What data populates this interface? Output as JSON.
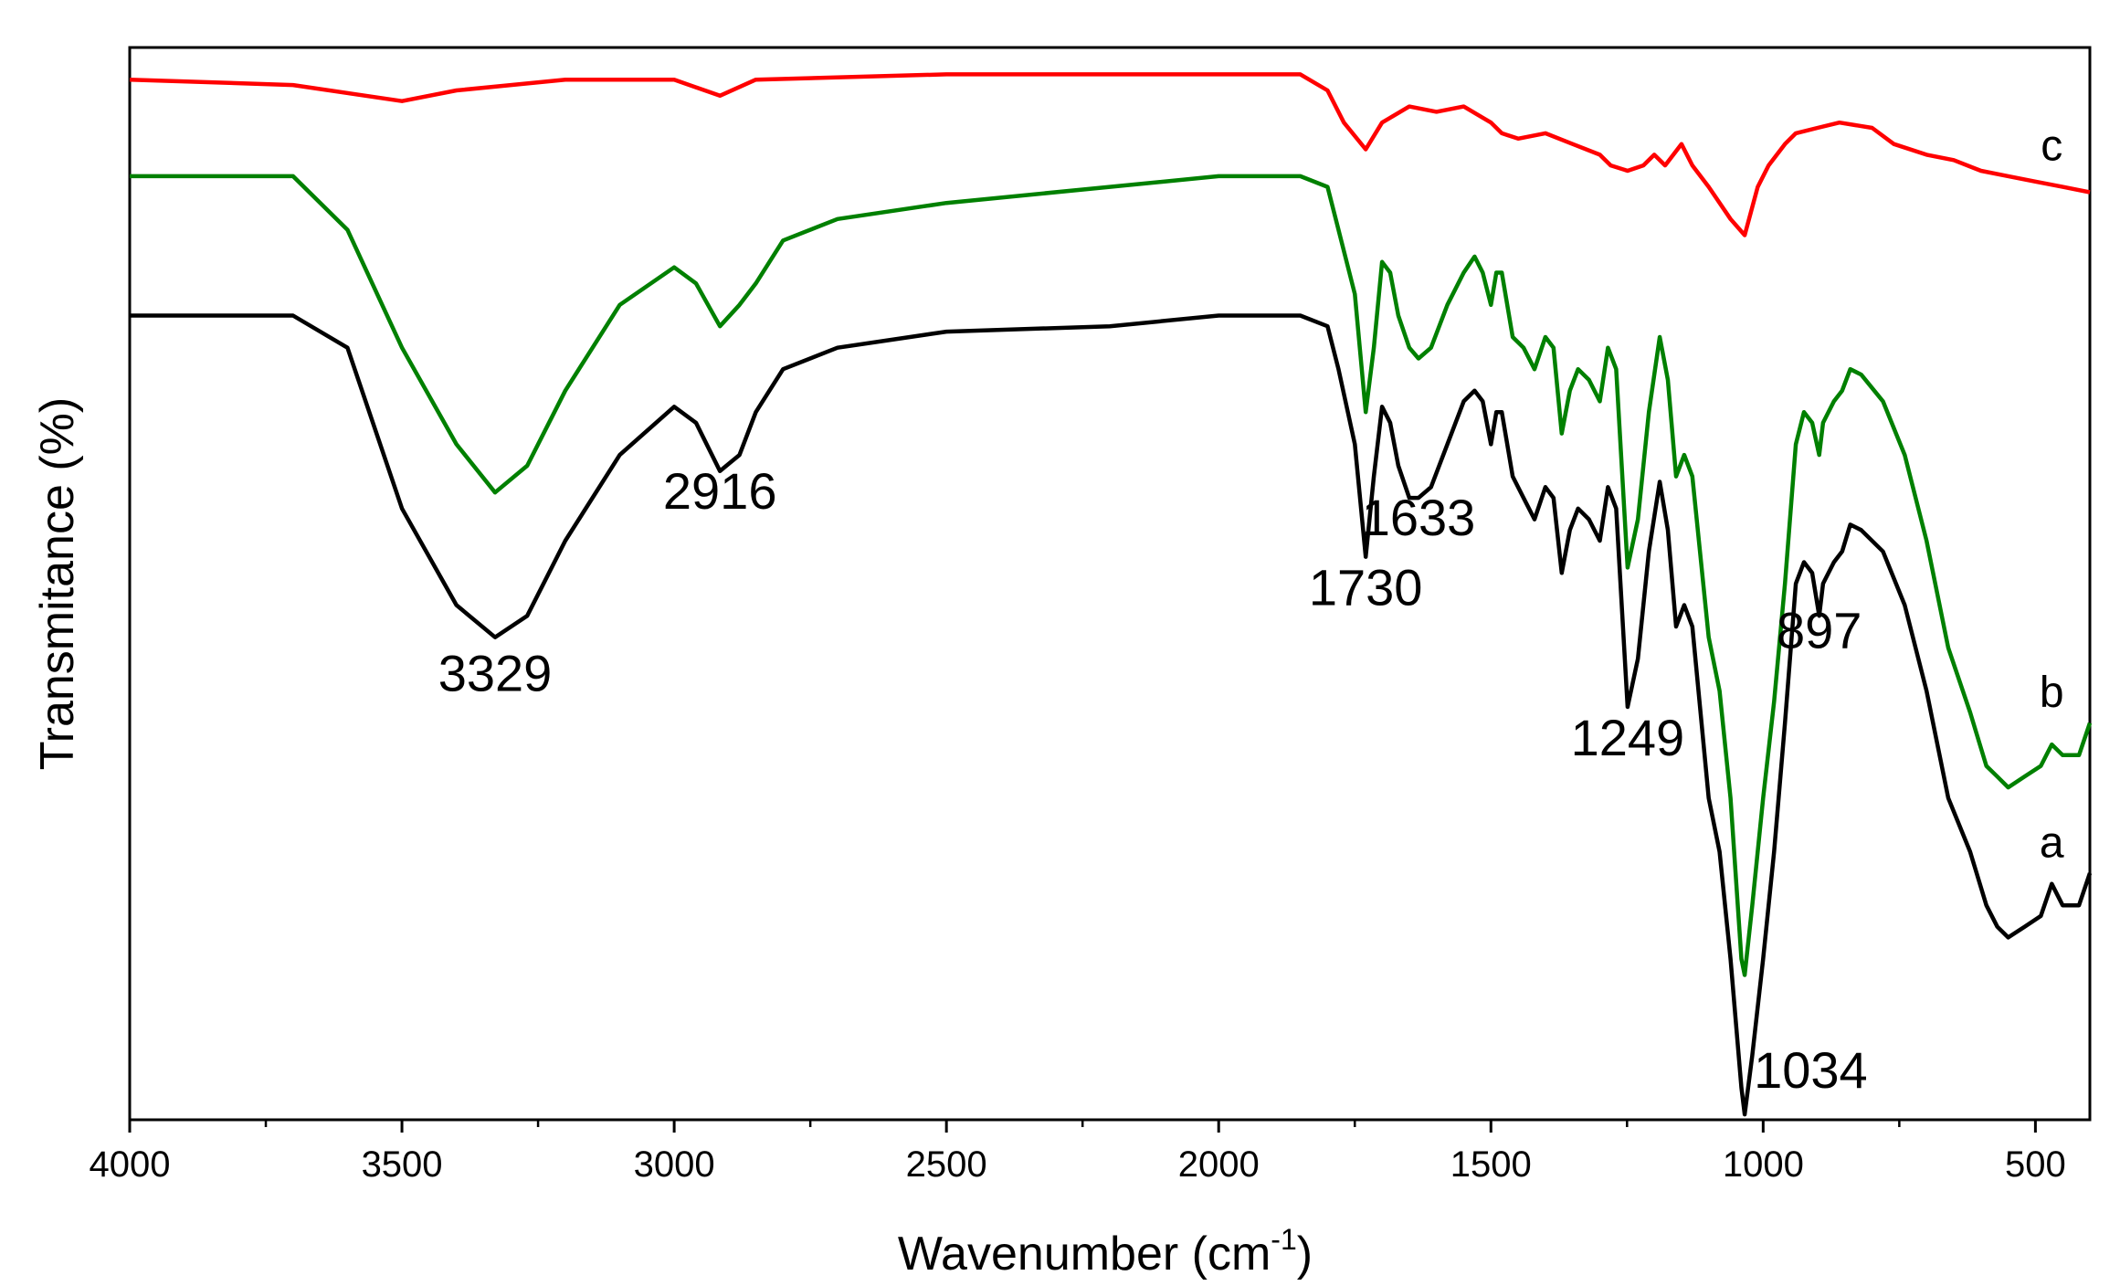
{
  "chart_data": {
    "type": "line",
    "xlabel": "Wavenumber (cm",
    "xlabel_sup": "-1",
    "xlabel_close": ")",
    "ylabel": "Transmitance (%)",
    "xlim": [
      4000,
      400
    ],
    "x_reversed": true,
    "xticks": [
      4000,
      3500,
      3000,
      2500,
      2000,
      1500,
      1000,
      500
    ],
    "xtick_labels": [
      "4000",
      "3500",
      "3000",
      "2500",
      "2000",
      "1500",
      "1000",
      "500"
    ],
    "y_tick_labels_shown": false,
    "ylim": [
      0,
      100
    ],
    "grid": false,
    "frame": "box",
    "series": [
      {
        "name": "a",
        "color": "#000000",
        "points": [
          [
            4000,
            75
          ],
          [
            3700,
            75
          ],
          [
            3600,
            72
          ],
          [
            3500,
            57
          ],
          [
            3400,
            48
          ],
          [
            3329,
            45
          ],
          [
            3270,
            47
          ],
          [
            3200,
            54
          ],
          [
            3100,
            62
          ],
          [
            3000,
            66.5
          ],
          [
            2960,
            65
          ],
          [
            2916,
            60.5
          ],
          [
            2880,
            62
          ],
          [
            2850,
            66
          ],
          [
            2800,
            70
          ],
          [
            2700,
            72
          ],
          [
            2500,
            73.5
          ],
          [
            2200,
            74
          ],
          [
            2000,
            75
          ],
          [
            1850,
            75
          ],
          [
            1800,
            74
          ],
          [
            1780,
            70
          ],
          [
            1750,
            63
          ],
          [
            1730,
            52.5
          ],
          [
            1715,
            60
          ],
          [
            1700,
            66.5
          ],
          [
            1685,
            65
          ],
          [
            1670,
            61
          ],
          [
            1650,
            58
          ],
          [
            1633,
            58
          ],
          [
            1610,
            59
          ],
          [
            1580,
            63
          ],
          [
            1550,
            67
          ],
          [
            1530,
            68
          ],
          [
            1515,
            67
          ],
          [
            1500,
            63
          ],
          [
            1490,
            66
          ],
          [
            1480,
            66
          ],
          [
            1460,
            60
          ],
          [
            1440,
            58
          ],
          [
            1420,
            56
          ],
          [
            1400,
            59
          ],
          [
            1385,
            58
          ],
          [
            1370,
            51
          ],
          [
            1355,
            55
          ],
          [
            1340,
            57
          ],
          [
            1320,
            56
          ],
          [
            1300,
            54
          ],
          [
            1285,
            59
          ],
          [
            1270,
            57
          ],
          [
            1249,
            38.5
          ],
          [
            1230,
            43
          ],
          [
            1210,
            53
          ],
          [
            1190,
            59.5
          ],
          [
            1175,
            55
          ],
          [
            1160,
            46
          ],
          [
            1145,
            48
          ],
          [
            1130,
            46
          ],
          [
            1100,
            30
          ],
          [
            1080,
            25
          ],
          [
            1060,
            15
          ],
          [
            1040,
            3
          ],
          [
            1034,
            0.5
          ],
          [
            1020,
            6
          ],
          [
            1000,
            15
          ],
          [
            980,
            25
          ],
          [
            960,
            37
          ],
          [
            940,
            50
          ],
          [
            925,
            52
          ],
          [
            910,
            51
          ],
          [
            897,
            47
          ],
          [
            890,
            50
          ],
          [
            870,
            52
          ],
          [
            855,
            53
          ],
          [
            840,
            55.5
          ],
          [
            820,
            55
          ],
          [
            780,
            53
          ],
          [
            740,
            48
          ],
          [
            700,
            40
          ],
          [
            660,
            30
          ],
          [
            620,
            25
          ],
          [
            590,
            20
          ],
          [
            570,
            18
          ],
          [
            550,
            17
          ],
          [
            520,
            18
          ],
          [
            490,
            19
          ],
          [
            470,
            22
          ],
          [
            450,
            20
          ],
          [
            420,
            20
          ],
          [
            400,
            23
          ]
        ]
      },
      {
        "name": "b",
        "color": "#008000",
        "points": [
          [
            4000,
            88
          ],
          [
            3700,
            88
          ],
          [
            3600,
            83
          ],
          [
            3500,
            72
          ],
          [
            3400,
            63
          ],
          [
            3329,
            58.5
          ],
          [
            3270,
            61
          ],
          [
            3200,
            68
          ],
          [
            3100,
            76
          ],
          [
            3000,
            79.5
          ],
          [
            2960,
            78
          ],
          [
            2916,
            74
          ],
          [
            2880,
            76
          ],
          [
            2850,
            78
          ],
          [
            2800,
            82
          ],
          [
            2700,
            84
          ],
          [
            2500,
            85.5
          ],
          [
            2200,
            87
          ],
          [
            2000,
            88
          ],
          [
            1850,
            88
          ],
          [
            1800,
            87
          ],
          [
            1780,
            83
          ],
          [
            1750,
            77
          ],
          [
            1730,
            66
          ],
          [
            1715,
            72
          ],
          [
            1700,
            80
          ],
          [
            1685,
            79
          ],
          [
            1670,
            75
          ],
          [
            1650,
            72
          ],
          [
            1633,
            71
          ],
          [
            1610,
            72
          ],
          [
            1580,
            76
          ],
          [
            1550,
            79
          ],
          [
            1530,
            80.5
          ],
          [
            1515,
            79
          ],
          [
            1500,
            76
          ],
          [
            1490,
            79
          ],
          [
            1480,
            79
          ],
          [
            1460,
            73
          ],
          [
            1440,
            72
          ],
          [
            1420,
            70
          ],
          [
            1400,
            73
          ],
          [
            1385,
            72
          ],
          [
            1370,
            64
          ],
          [
            1355,
            68
          ],
          [
            1340,
            70
          ],
          [
            1320,
            69
          ],
          [
            1300,
            67
          ],
          [
            1285,
            72
          ],
          [
            1270,
            70
          ],
          [
            1249,
            51.5
          ],
          [
            1230,
            56
          ],
          [
            1210,
            66
          ],
          [
            1190,
            73
          ],
          [
            1175,
            69
          ],
          [
            1160,
            60
          ],
          [
            1145,
            62
          ],
          [
            1130,
            60
          ],
          [
            1100,
            45
          ],
          [
            1080,
            40
          ],
          [
            1060,
            30
          ],
          [
            1040,
            15
          ],
          [
            1034,
            13.5
          ],
          [
            1020,
            20
          ],
          [
            1000,
            30
          ],
          [
            980,
            39
          ],
          [
            960,
            50
          ],
          [
            940,
            63
          ],
          [
            925,
            66
          ],
          [
            910,
            65
          ],
          [
            897,
            62
          ],
          [
            890,
            65
          ],
          [
            870,
            67
          ],
          [
            855,
            68
          ],
          [
            840,
            70
          ],
          [
            820,
            69.5
          ],
          [
            780,
            67
          ],
          [
            740,
            62
          ],
          [
            700,
            54
          ],
          [
            660,
            44
          ],
          [
            620,
            38
          ],
          [
            590,
            33
          ],
          [
            570,
            32
          ],
          [
            550,
            31
          ],
          [
            520,
            32
          ],
          [
            490,
            33
          ],
          [
            470,
            35
          ],
          [
            450,
            34
          ],
          [
            420,
            34
          ],
          [
            400,
            37
          ]
        ]
      },
      {
        "name": "c",
        "color": "#ff0000",
        "points": [
          [
            4000,
            97
          ],
          [
            3700,
            96.5
          ],
          [
            3500,
            95
          ],
          [
            3400,
            96
          ],
          [
            3300,
            96.5
          ],
          [
            3200,
            97
          ],
          [
            3000,
            97
          ],
          [
            2916,
            95.5
          ],
          [
            2850,
            97
          ],
          [
            2500,
            97.5
          ],
          [
            2000,
            97.5
          ],
          [
            1850,
            97.5
          ],
          [
            1800,
            96
          ],
          [
            1770,
            93
          ],
          [
            1730,
            90.5
          ],
          [
            1700,
            93
          ],
          [
            1650,
            94.5
          ],
          [
            1600,
            94
          ],
          [
            1550,
            94.5
          ],
          [
            1500,
            93
          ],
          [
            1480,
            92
          ],
          [
            1450,
            91.5
          ],
          [
            1400,
            92
          ],
          [
            1350,
            91
          ],
          [
            1300,
            90
          ],
          [
            1280,
            89
          ],
          [
            1249,
            88.5
          ],
          [
            1220,
            89
          ],
          [
            1200,
            90
          ],
          [
            1180,
            89
          ],
          [
            1150,
            91
          ],
          [
            1130,
            89
          ],
          [
            1100,
            87
          ],
          [
            1060,
            84
          ],
          [
            1034,
            82.5
          ],
          [
            1010,
            87
          ],
          [
            990,
            89
          ],
          [
            960,
            91
          ],
          [
            940,
            92
          ],
          [
            900,
            92.5
          ],
          [
            860,
            93
          ],
          [
            800,
            92.5
          ],
          [
            760,
            91
          ],
          [
            700,
            90
          ],
          [
            650,
            89.5
          ],
          [
            600,
            88.5
          ],
          [
            550,
            88
          ],
          [
            500,
            87.5
          ],
          [
            450,
            87
          ],
          [
            400,
            86.5
          ]
        ]
      }
    ],
    "annotations": [
      {
        "text": "3329",
        "x": 3329,
        "y": 40
      },
      {
        "text": "2916",
        "x": 2916,
        "y": 57
      },
      {
        "text": "1730",
        "x": 1730,
        "y": 48
      },
      {
        "text": "1633",
        "x": 1633,
        "y": 54.5
      },
      {
        "text": "1249",
        "x": 1249,
        "y": 34
      },
      {
        "text": "897",
        "x": 897,
        "y": 44
      },
      {
        "text": "1034",
        "x": 1034,
        "y": 3
      }
    ],
    "series_labels": [
      {
        "text": "c",
        "x": 470,
        "y": 89.5
      },
      {
        "text": "b",
        "x": 470,
        "y": 38.5
      },
      {
        "text": "a",
        "x": 470,
        "y": 24.5
      }
    ]
  }
}
